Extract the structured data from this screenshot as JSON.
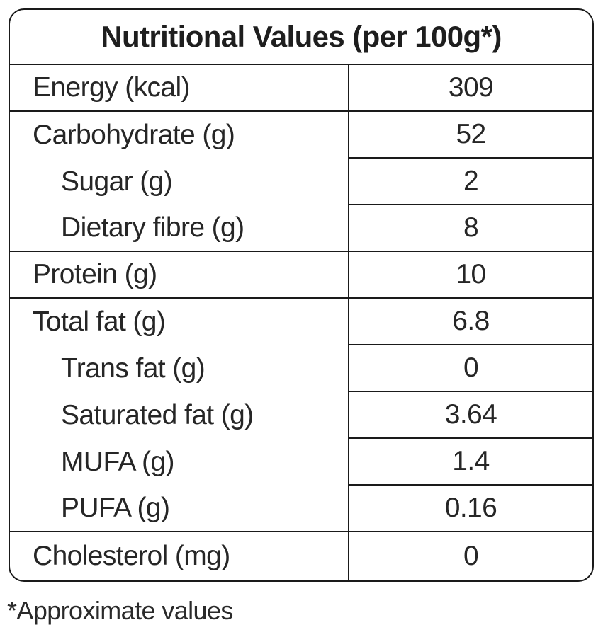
{
  "table": {
    "title": "Nutritional Values (per 100g*)",
    "rows": [
      {
        "label": "Energy (kcal)",
        "value": "309"
      },
      {
        "label": "Carbohydrate (g)",
        "value": "52"
      },
      {
        "label": "Sugar (g)",
        "value": "2"
      },
      {
        "label": "Dietary fibre (g)",
        "value": "8"
      },
      {
        "label": "Protein (g)",
        "value": "10"
      },
      {
        "label": "Total fat (g)",
        "value": "6.8"
      },
      {
        "label": "Trans fat (g)",
        "value": "0"
      },
      {
        "label": "Saturated fat (g)",
        "value": "3.64"
      },
      {
        "label": "MUFA (g)",
        "value": "1.4"
      },
      {
        "label": "PUFA (g)",
        "value": "0.16"
      },
      {
        "label": "Cholesterol (mg)",
        "value": "0"
      }
    ]
  },
  "footnote": "*Approximate values"
}
